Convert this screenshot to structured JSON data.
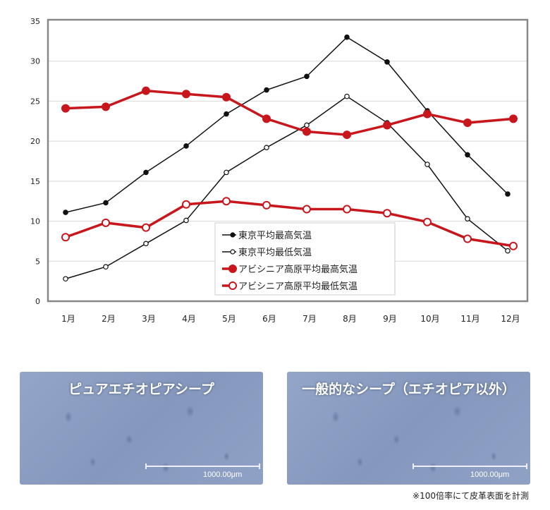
{
  "chart_data": {
    "type": "line",
    "categories": [
      "1月",
      "2月",
      "3月",
      "4月",
      "5月",
      "6月",
      "7月",
      "8月",
      "9月",
      "10月",
      "11月",
      "12月"
    ],
    "ylim": [
      0,
      35
    ],
    "yticks": [
      0,
      5,
      10,
      15,
      20,
      25,
      30,
      35
    ],
    "grid": true,
    "legend_position": "bottom-center",
    "series": [
      {
        "name": "東京平均最高気温",
        "values": [
          11.1,
          12.3,
          16.1,
          19.4,
          23.4,
          26.4,
          28.1,
          33.0,
          29.9,
          23.8,
          18.3,
          13.4
        ],
        "color": "#111111",
        "marker": "filled",
        "weight": "thin"
      },
      {
        "name": "東京平均最低気温",
        "values": [
          2.8,
          4.3,
          7.2,
          10.1,
          16.1,
          19.2,
          22.0,
          25.6,
          22.3,
          17.1,
          10.3,
          6.3
        ],
        "color": "#111111",
        "marker": "hollow",
        "weight": "thin"
      },
      {
        "name": "アビシニア高原平均最高気温",
        "values": [
          24.1,
          24.3,
          26.3,
          25.9,
          25.5,
          22.8,
          21.2,
          20.8,
          22.0,
          23.4,
          22.3,
          22.8
        ],
        "color": "#c8161d",
        "marker": "filled",
        "weight": "thick"
      },
      {
        "name": "アビシニア高原平均最低気温",
        "values": [
          8.0,
          9.8,
          9.2,
          12.1,
          12.5,
          12.0,
          11.5,
          11.5,
          11.0,
          9.9,
          7.8,
          6.9
        ],
        "color": "#c8161d",
        "marker": "hollow",
        "weight": "thick"
      }
    ]
  },
  "photos": [
    {
      "title": "ピュアエチオピアシープ",
      "scale": "1000.00μm"
    },
    {
      "title": "一般的なシープ（エチオピア以外）",
      "scale": "1000.00μm"
    }
  ],
  "note": "※100倍率にて皮革表面を計測"
}
